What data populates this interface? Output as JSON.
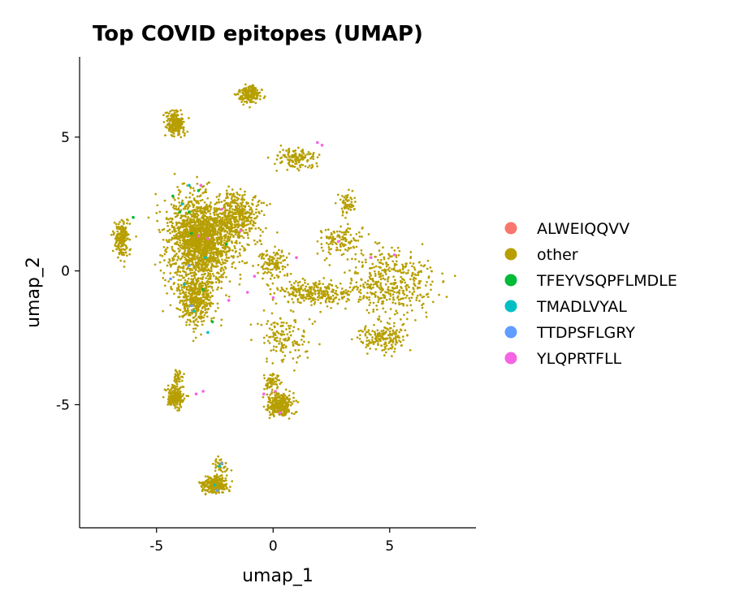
{
  "chart_data": {
    "type": "scatter",
    "title": "Top COVID epitopes (UMAP)",
    "xlabel": "umap_1",
    "ylabel": "umap_2",
    "xlim": [
      -8.3,
      8.7
    ],
    "ylim": [
      -9.6,
      8.0
    ],
    "xticks": [
      -5,
      0,
      5
    ],
    "yticks": [
      -5,
      0,
      5
    ],
    "grid": false,
    "legend_position": "right",
    "background_series": "other",
    "series": [
      {
        "name": "ALWEIQQVV",
        "color": "#F8766D",
        "points": []
      },
      {
        "name": "other",
        "color": "#B79F00",
        "clusters": [
          {
            "center": [
              -3.1,
              1.2
            ],
            "spread": [
              1.3,
              1.35
            ],
            "count": 1700
          },
          {
            "center": [
              -3.3,
              -1.0
            ],
            "spread": [
              0.75,
              0.95
            ],
            "count": 500
          },
          {
            "center": [
              -1.5,
              2.0
            ],
            "spread": [
              0.9,
              0.8
            ],
            "count": 380
          },
          {
            "center": [
              0.0,
              0.3
            ],
            "spread": [
              0.6,
              0.5
            ],
            "count": 120
          },
          {
            "center": [
              1.8,
              -0.8
            ],
            "spread": [
              1.4,
              0.35
            ],
            "count": 260
          },
          {
            "center": [
              5.0,
              -0.5
            ],
            "spread": [
              1.8,
              1.1
            ],
            "count": 420
          },
          {
            "center": [
              4.7,
              -2.5
            ],
            "spread": [
              1.0,
              0.5
            ],
            "count": 180
          },
          {
            "center": [
              3.0,
              1.2
            ],
            "spread": [
              1.0,
              0.5
            ],
            "count": 120
          },
          {
            "center": [
              3.2,
              2.5
            ],
            "spread": [
              0.35,
              0.4
            ],
            "count": 60
          },
          {
            "center": [
              1.0,
              4.2
            ],
            "spread": [
              0.8,
              0.3
            ],
            "count": 140
          },
          {
            "center": [
              -4.2,
              5.5
            ],
            "spread": [
              0.35,
              0.4
            ],
            "count": 220
          },
          {
            "center": [
              -1.0,
              6.6
            ],
            "spread": [
              0.4,
              0.3
            ],
            "count": 200
          },
          {
            "center": [
              -6.5,
              1.2
            ],
            "spread": [
              0.3,
              0.6
            ],
            "count": 190
          },
          {
            "center": [
              -4.2,
              -4.7
            ],
            "spread": [
              0.3,
              0.35
            ],
            "count": 180
          },
          {
            "center": [
              -4.1,
              -4.0
            ],
            "spread": [
              0.2,
              0.3
            ],
            "count": 40
          },
          {
            "center": [
              0.3,
              -5.0
            ],
            "spread": [
              0.45,
              0.4
            ],
            "count": 300
          },
          {
            "center": [
              0.0,
              -4.2
            ],
            "spread": [
              0.3,
              0.3
            ],
            "count": 60
          },
          {
            "center": [
              -2.5,
              -8.0
            ],
            "spread": [
              0.5,
              0.3
            ],
            "count": 260
          },
          {
            "center": [
              -2.3,
              -7.3
            ],
            "spread": [
              0.3,
              0.3
            ],
            "count": 40
          },
          {
            "center": [
              0.5,
              -2.5
            ],
            "spread": [
              0.9,
              0.8
            ],
            "count": 140
          }
        ]
      },
      {
        "name": "TFEYVSQPFLMDLE",
        "color": "#00BA38",
        "points": [
          [
            -6.0,
            2.0
          ],
          [
            -4.3,
            2.8
          ],
          [
            -3.6,
            2.2
          ],
          [
            -3.2,
            3.0
          ],
          [
            -2.0,
            1.0
          ],
          [
            -3.0,
            -0.7
          ],
          [
            -2.6,
            -1.9
          ],
          [
            -3.5,
            1.4
          ],
          [
            -4.0,
            2.2
          ]
        ]
      },
      {
        "name": "TMADLVYAL",
        "color": "#00BFC4",
        "points": [
          [
            -3.6,
            3.2
          ],
          [
            -3.9,
            2.5
          ],
          [
            -2.9,
            0.5
          ],
          [
            -2.3,
            -7.3
          ],
          [
            -2.5,
            -8.0
          ],
          [
            -3.8,
            -0.5
          ],
          [
            -3.4,
            -1.5
          ],
          [
            -2.8,
            -2.3
          ]
        ]
      },
      {
        "name": "TTDPSFLGRY",
        "color": "#619CFF",
        "points": [
          [
            -4.4,
            -0.3
          ],
          [
            -3.5,
            -1.3
          ],
          [
            -2.2,
            -7.2
          ],
          [
            -3.6,
            0.2
          ],
          [
            -2.4,
            -8.2
          ]
        ]
      },
      {
        "name": "YLQPRTFLL",
        "color": "#F564E3",
        "points": [
          [
            -3.1,
            3.2
          ],
          [
            -2.2,
            2.3
          ],
          [
            -3.2,
            1.3
          ],
          [
            -2.8,
            1.2
          ],
          [
            -1.4,
            1.5
          ],
          [
            -0.8,
            -0.2
          ],
          [
            0.0,
            -1.0
          ],
          [
            -1.1,
            -0.8
          ],
          [
            0.1,
            -4.5
          ],
          [
            -0.4,
            -4.6
          ],
          [
            0.3,
            -5.3
          ],
          [
            -3.3,
            -4.6
          ],
          [
            -3.0,
            -4.5
          ],
          [
            2.1,
            4.7
          ],
          [
            1.9,
            4.8
          ],
          [
            2.8,
            1.1
          ],
          [
            4.2,
            0.5
          ],
          [
            5.2,
            0.6
          ],
          [
            1.0,
            0.5
          ],
          [
            -1.9,
            -1.1
          ]
        ]
      }
    ]
  }
}
